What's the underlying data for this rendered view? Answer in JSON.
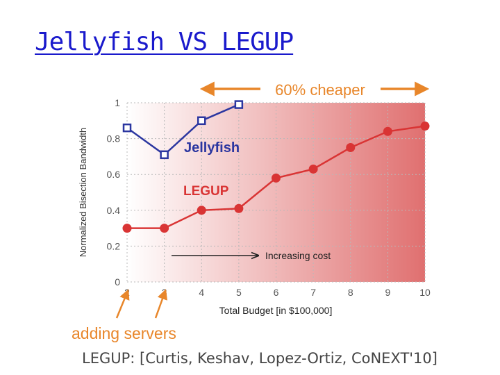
{
  "slide": {
    "title": "Jellyfish VS LEGUP",
    "citation": "LEGUP: [Curtis, Keshav, Lopez-Ortiz, CoNEXT'10]"
  },
  "colors": {
    "title": "#1a1acc",
    "jellyfish": "#2b36a0",
    "legup": "#d93434",
    "annotation": "#e8862a",
    "gradient_start": "#ffffff",
    "gradient_end": "#e07070"
  },
  "annotations": {
    "top_arrow_label": "60% cheaper",
    "cost_arrow_label": "Increasing cost",
    "bottom_label": "adding servers"
  },
  "chart_data": {
    "type": "line",
    "xlabel": "Total Budget [in $100,000]",
    "ylabel": "Normalized Bisection Bandwidth",
    "xlim": [
      2,
      10
    ],
    "ylim": [
      0,
      1
    ],
    "x_ticks": [
      "2",
      "3",
      "4",
      "5",
      "6",
      "7",
      "8",
      "9",
      "10"
    ],
    "y_ticks": [
      "0",
      "0.2",
      "0.4",
      "0.6",
      "0.8",
      "1"
    ],
    "grid": true,
    "series": [
      {
        "name": "Jellyfish",
        "marker": "square",
        "x": [
          2,
          3,
          4,
          5
        ],
        "y": [
          0.86,
          0.71,
          0.9,
          0.99
        ]
      },
      {
        "name": "LEGUP",
        "marker": "circle",
        "x": [
          2,
          3,
          4,
          5,
          6,
          7,
          8,
          9,
          10
        ],
        "y": [
          0.3,
          0.3,
          0.4,
          0.41,
          0.58,
          0.63,
          0.75,
          0.84,
          0.87
        ]
      }
    ]
  }
}
